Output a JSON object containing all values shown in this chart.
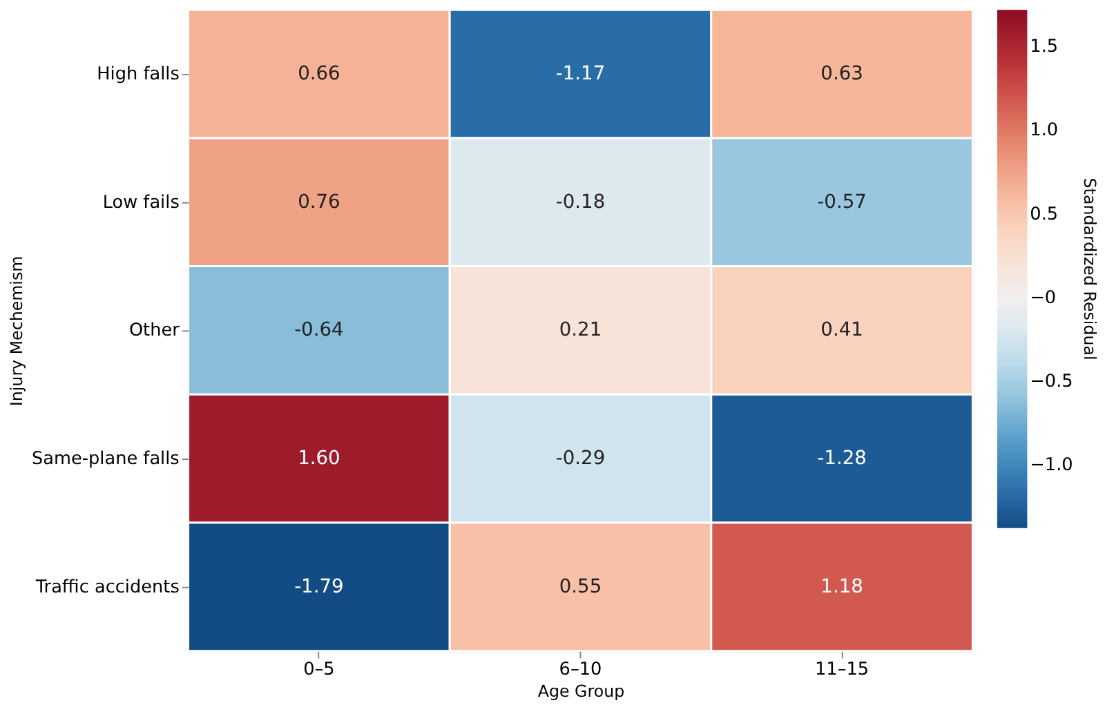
{
  "chart_data": {
    "type": "heatmap",
    "xlabel": "Age Group",
    "ylabel": "Injury Mechemism",
    "clabel": "Standardized Residual",
    "categories": [
      "0–5",
      "6–10",
      "11–15"
    ],
    "y_categories": [
      "High falls",
      "Low fails",
      "Other",
      "Same-plane falls",
      "Traffic accidents"
    ],
    "cells": [
      [
        0.66,
        -1.17,
        0.63
      ],
      [
        0.76,
        -0.18,
        -0.57
      ],
      [
        -0.64,
        0.21,
        0.41
      ],
      [
        1.6,
        -0.29,
        -1.28
      ],
      [
        -1.79,
        0.55,
        1.18
      ]
    ],
    "cell_labels": [
      [
        "0.66",
        "-1.17",
        "0.63"
      ],
      [
        "0.76",
        "-0.18",
        "-0.57"
      ],
      [
        "-0.64",
        "0.21",
        "0.41"
      ],
      [
        "1.60",
        "-0.29",
        "-1.28"
      ],
      [
        "-1.79",
        "0.55",
        "1.18"
      ]
    ],
    "clim": [
      -1.38,
      1.72
    ],
    "cticks": [
      {
        "value": -1.0,
        "label": "−1.0"
      },
      {
        "value": -0.5,
        "label": "−0.5"
      },
      {
        "value": 0,
        "label": "−0"
      },
      {
        "value": 0.5,
        "label": "0.5"
      },
      {
        "value": 1.0,
        "label": "1.0"
      },
      {
        "value": 1.5,
        "label": "1.5"
      }
    ]
  }
}
